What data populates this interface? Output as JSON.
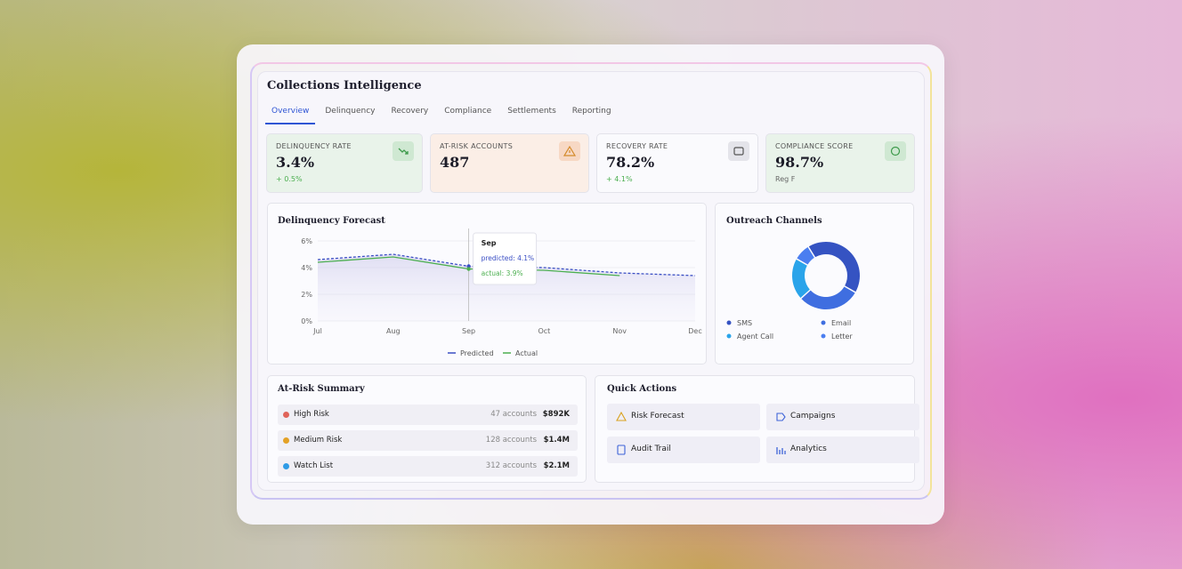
{
  "header": {
    "title": "Collections Intelligence"
  },
  "tabs": [
    "Overview",
    "Delinquency",
    "Recovery",
    "Compliance",
    "Settlements",
    "Reporting"
  ],
  "active_tab": 0,
  "kpis": [
    {
      "label": "DELINQUENCY RATE",
      "value": "3.4%",
      "note": "+ 0.5%"
    },
    {
      "label": "AT-RISK ACCOUNTS",
      "value": "487"
    },
    {
      "label": "RECOVERY RATE",
      "value": "78.2%",
      "note": "+ 4.1%"
    },
    {
      "label": "COMPLIANCE SCORE",
      "value": "98.7%",
      "note": "Reg F"
    }
  ],
  "chart_data": [
    {
      "type": "line",
      "title": "Delinquency Forecast",
      "categories": [
        "Jul",
        "Aug",
        "Sep",
        "Oct",
        "Nov",
        "Dec"
      ],
      "series": [
        {
          "name": "Predicted",
          "color": "#3b4fc4",
          "dashed": true,
          "values": [
            4.6,
            5.0,
            4.1,
            4.0,
            3.6,
            3.4
          ],
          "value_labels": [
            null,
            null,
            "predicted: 4.1%",
            null,
            null,
            null
          ]
        },
        {
          "name": "Actual",
          "color": "#4caf50",
          "values": [
            4.4,
            4.8,
            3.9,
            3.8,
            3.4,
            null
          ],
          "value_labels": [
            null,
            null,
            "actual: 3.9%",
            null,
            null,
            null
          ]
        }
      ],
      "highlight": 2,
      "ylim": [
        0,
        6
      ],
      "yticks": [
        {
          "value": 0,
          "label": "0%"
        },
        {
          "value": 2,
          "label": "2%"
        },
        {
          "value": 4,
          "label": "4%"
        },
        {
          "value": 6,
          "label": "6%"
        }
      ],
      "grid": true,
      "legend": "bottom"
    },
    {
      "type": "pie",
      "title": "Outreach Channels",
      "donut": true,
      "categories": [
        "SMS",
        "Email",
        "Agent Call",
        "Letter"
      ],
      "values": [
        42,
        30,
        20,
        8
      ],
      "colors": [
        "#3553c2",
        "#3f6ee0",
        "#2aa4ea",
        "#4b7ef0"
      ],
      "legend": "bottom"
    }
  ],
  "at_risk_summary": {
    "title": "At-Risk Summary",
    "rows": [
      {
        "name": "High Risk",
        "accounts": "47 accounts",
        "amount": "$892K",
        "color": "#e0645a"
      },
      {
        "name": "Medium Risk",
        "accounts": "128 accounts",
        "amount": "$1.4M",
        "color": "#e3a126"
      },
      {
        "name": "Watch List",
        "accounts": "312 accounts",
        "amount": "$2.1M",
        "color": "#2e9be6"
      }
    ]
  },
  "quick_actions": {
    "title": "Quick Actions",
    "items": [
      "Risk Forecast",
      "Campaigns",
      "Audit Trail",
      "Analytics"
    ]
  }
}
